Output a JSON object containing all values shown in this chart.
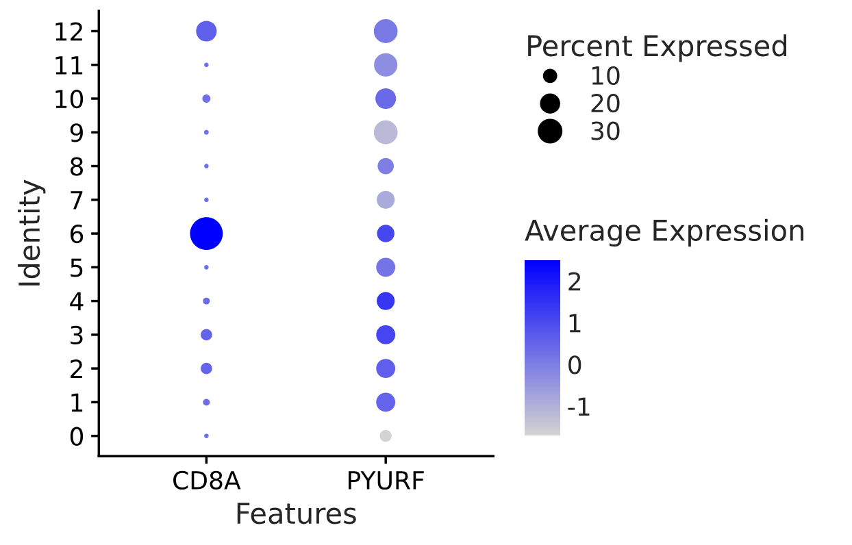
{
  "chart_data": {
    "type": "bubble",
    "xlabel": "Features",
    "ylabel": "Identity",
    "legend_title": "Percent Expressed",
    "clabel": "Average Expression",
    "categories": [
      "CD8A",
      "PYURF"
    ],
    "series": [
      {
        "x": [
          "CD8A",
          "CD8A",
          "CD8A",
          "CD8A",
          "CD8A",
          "CD8A",
          "CD8A",
          "CD8A",
          "CD8A",
          "CD8A",
          "CD8A",
          "CD8A",
          "CD8A"
        ],
        "values": [
          0,
          1,
          2,
          3,
          4,
          5,
          6,
          7,
          8,
          9,
          10,
          11,
          12
        ],
        "sizes": [
          1,
          2.3,
          6.4,
          6.4,
          2.3,
          1,
          53,
          1,
          1,
          1.1,
          3.3,
          1,
          21
        ],
        "colors": [
          "#6f6fe8",
          "#6f6fe8",
          "#6464ea",
          "#6464ea",
          "#6a6ae9",
          "#6f6fe8",
          "#0000ff",
          "#6f6fe8",
          "#6f6fe8",
          "#6f6fe8",
          "#6f6fe8",
          "#6f6fe8",
          "#5f5feb"
        ]
      },
      {
        "x": [
          "PYURF",
          "PYURF",
          "PYURF",
          "PYURF",
          "PYURF",
          "PYURF",
          "PYURF",
          "PYURF",
          "PYURF",
          "PYURF",
          "PYURF",
          "PYURF",
          "PYURF"
        ],
        "values": [
          0,
          1,
          2,
          3,
          4,
          5,
          6,
          7,
          8,
          9,
          10,
          11,
          12
        ],
        "sizes": [
          7,
          18,
          18,
          18,
          16,
          18,
          15,
          16,
          13,
          28,
          21,
          27,
          28
        ],
        "colors": [
          "#d3d3d3",
          "#6464ea",
          "#5f5feb",
          "#4646f0",
          "#3737f3",
          "#7474e7",
          "#4646f0",
          "#ababdb",
          "#7e7ee5",
          "#babad8",
          "#6a6ae9",
          "#8d8de2",
          "#7979e6"
        ]
      }
    ],
    "ylim": [
      -0.6,
      12.6
    ],
    "yticks": [
      0,
      1,
      2,
      3,
      4,
      5,
      6,
      7,
      8,
      9,
      10,
      11,
      12
    ],
    "size_legend": [
      10,
      20,
      30
    ],
    "clim": [
      -1.7,
      2.5
    ],
    "cticks": [
      -1,
      0,
      1,
      2
    ],
    "grid": false
  }
}
